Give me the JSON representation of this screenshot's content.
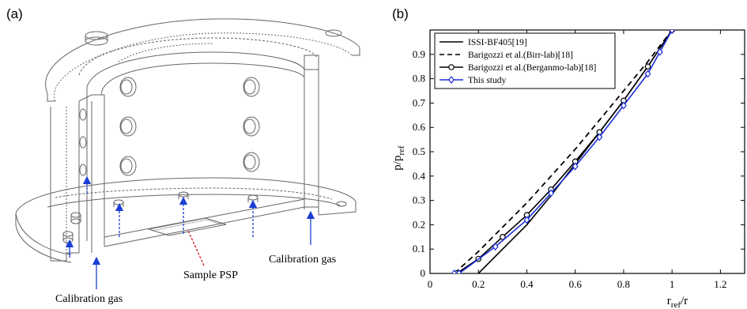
{
  "panels": {
    "left": {
      "label": "(a)",
      "callouts": {
        "sample_psp": "Sample PSP",
        "calibration_gas_right": "Calibration gas",
        "calibration_gas_bottom": "Calibration gas"
      }
    },
    "right": {
      "label": "(b)"
    }
  },
  "colors": {
    "arrow_blue": "#1a3fd6",
    "psp_red": "#d11a1a",
    "series_blue": "#1d2fd8",
    "black": "#000000"
  },
  "chart_data": {
    "type": "line",
    "xlabel": "r_ref/r",
    "ylabel": "p/p_ref",
    "xlabel_main": "r",
    "xlabel_sub": "ref",
    "xlabel_tail": "/r",
    "ylabel_main": "p/p",
    "ylabel_sub": "ref",
    "xlim": [
      0,
      1.3
    ],
    "ylim": [
      0,
      1.0
    ],
    "xticks": [
      "0",
      "0.2",
      "0.4",
      "0.6",
      "0.8",
      "1",
      "1.2"
    ],
    "yticks": [
      "0",
      "0.1",
      "0.2",
      "0.3",
      "0.4",
      "0.5",
      "0.6",
      "0.7",
      "0.8",
      "0.9"
    ],
    "grid": false,
    "legend_position": "top-left",
    "series": [
      {
        "name": "ISSI-BF405[19]",
        "style": "solid",
        "marker": "none",
        "color": "#000000",
        "x": [
          0.2,
          0.3,
          0.4,
          0.5,
          0.6,
          0.7,
          0.8,
          0.9,
          1.0
        ],
        "y": [
          0.0,
          0.1,
          0.2,
          0.32,
          0.45,
          0.58,
          0.71,
          0.85,
          1.0
        ]
      },
      {
        "name": "Barigozzi et al.(Birr-lab)[18]",
        "style": "dashed",
        "marker": "none",
        "color": "#000000",
        "x": [
          0.1,
          0.2,
          0.3,
          0.4,
          0.5,
          0.6,
          0.7,
          0.8,
          0.9,
          1.0
        ],
        "y": [
          0.0,
          0.09,
          0.19,
          0.29,
          0.4,
          0.51,
          0.63,
          0.75,
          0.87,
          1.0
        ]
      },
      {
        "name": "Barigozzi et al.(Berganmo-lab)[18]",
        "style": "solid",
        "marker": "circle",
        "color": "#000000",
        "x": [
          0.11,
          0.2,
          0.3,
          0.4,
          0.5,
          0.6,
          0.7,
          0.8,
          0.9,
          1.0
        ],
        "y": [
          0.0,
          0.06,
          0.15,
          0.24,
          0.345,
          0.46,
          0.58,
          0.71,
          0.85,
          1.0
        ]
      },
      {
        "name": "This study",
        "style": "solid",
        "marker": "diamond",
        "color": "#1d2fd8",
        "x": [
          0.1,
          0.12,
          0.27,
          0.4,
          0.5,
          0.6,
          0.7,
          0.8,
          0.9,
          0.95,
          1.0
        ],
        "y": [
          0.0,
          0.0,
          0.11,
          0.22,
          0.33,
          0.44,
          0.56,
          0.69,
          0.82,
          0.91,
          1.0
        ]
      }
    ]
  }
}
